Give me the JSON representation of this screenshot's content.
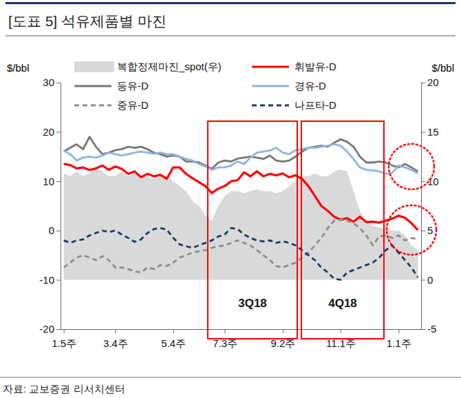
{
  "chart_data": {
    "type": "line",
    "title": "[도표 5] 석유제품별 마진",
    "source": "자료: 교보증권 리서치센터",
    "y_label": "$/bbl",
    "y2_label": "$/bbl",
    "categories": [
      "1.5주",
      null,
      null,
      null,
      null,
      null,
      null,
      null,
      "3.4주",
      null,
      null,
      null,
      null,
      null,
      null,
      null,
      null,
      "5.4주",
      null,
      null,
      null,
      null,
      null,
      null,
      null,
      "7.3주",
      null,
      null,
      null,
      null,
      null,
      null,
      null,
      null,
      "9.2주",
      null,
      null,
      null,
      null,
      null,
      null,
      null,
      null,
      "11.1주",
      null,
      null,
      null,
      null,
      null,
      null,
      null,
      null,
      "1.1주",
      null,
      null,
      null
    ],
    "ylim": [
      -20,
      30
    ],
    "yticks": [
      -20,
      -10,
      0,
      10,
      20,
      30
    ],
    "y2lim": [
      -5,
      20
    ],
    "y2ticks": [
      -5,
      0,
      5,
      10,
      15,
      20
    ],
    "grid": false,
    "annotations": [
      {
        "text": "3Q18"
      },
      {
        "text": "4Q18"
      }
    ],
    "series": [
      {
        "name": "복합정제마진_spot(우)",
        "type": "area",
        "axis": "y2",
        "color": "#d9d9d9",
        "values": [
          10.8,
          10.5,
          11.0,
          10.5,
          10.8,
          11.5,
          11.0,
          10.5,
          10.5,
          11.0,
          10.5,
          10.8,
          10.2,
          10.5,
          10.3,
          10.8,
          10.5,
          10.0,
          9.5,
          9.0,
          8.0,
          7.5,
          6.5,
          6.0,
          7.5,
          8.5,
          9.0,
          9.0,
          8.8,
          9.0,
          9.2,
          9.0,
          9.0,
          8.8,
          9.0,
          9.5,
          10.0,
          10.5,
          10.5,
          10.8,
          10.5,
          10.5,
          11.0,
          11.2,
          11.0,
          9.0,
          7.0,
          6.0,
          5.5,
          5.3,
          5.2,
          5.0,
          5.0,
          4.5,
          3.5,
          3.0
        ]
      },
      {
        "name": "휘발유-D",
        "color": "#ff0000",
        "line_style": "solid",
        "values": [
          13.5,
          13.3,
          12.6,
          12.8,
          12.3,
          12.6,
          13.2,
          12.3,
          13.0,
          12.5,
          11.5,
          12.0,
          10.8,
          11.5,
          11.0,
          11.3,
          10.5,
          12.8,
          12.8,
          11.5,
          10.6,
          9.8,
          9.0,
          7.6,
          8.5,
          9.0,
          10.0,
          10.2,
          11.8,
          11.0,
          12.0,
          11.0,
          11.5,
          11.2,
          11.6,
          10.8,
          11.2,
          10.5,
          9.0,
          7.0,
          5.0,
          4.0,
          2.8,
          2.2,
          2.5,
          1.8,
          2.8,
          1.7,
          1.8,
          1.6,
          2.0,
          2.4,
          3.0,
          2.6,
          1.5,
          0.1
        ]
      },
      {
        "name": "등유-D",
        "color": "#767676",
        "line_style": "solid",
        "values": [
          16.0,
          16.8,
          17.5,
          16.5,
          19.0,
          17.0,
          15.5,
          15.8,
          16.3,
          16.5,
          17.0,
          16.8,
          17.0,
          16.5,
          15.8,
          15.5,
          15.0,
          15.2,
          15.0,
          14.0,
          14.0,
          13.8,
          13.2,
          12.5,
          13.8,
          14.2,
          14.0,
          14.6,
          14.8,
          15.0,
          14.8,
          14.5,
          15.2,
          14.2,
          14.0,
          14.2,
          15.0,
          16.0,
          16.8,
          17.0,
          17.2,
          17.0,
          17.8,
          18.5,
          18.0,
          17.0,
          15.0,
          13.8,
          13.8,
          14.0,
          13.8,
          13.2,
          12.8,
          13.5,
          12.8,
          12.0
        ]
      },
      {
        "name": "경유-D",
        "color": "#8db4e2",
        "line_style": "solid",
        "values": [
          16.2,
          15.5,
          14.2,
          14.8,
          15.0,
          14.8,
          15.2,
          15.8,
          15.5,
          15.2,
          15.5,
          15.8,
          16.0,
          15.8,
          15.6,
          15.8,
          15.5,
          15.5,
          15.0,
          14.5,
          14.2,
          13.5,
          13.0,
          12.3,
          12.8,
          12.8,
          13.2,
          14.0,
          13.5,
          14.8,
          15.8,
          16.0,
          16.2,
          16.8,
          15.8,
          15.5,
          16.3,
          16.5,
          16.8,
          16.8,
          17.0,
          17.2,
          17.5,
          17.2,
          16.0,
          14.5,
          12.8,
          12.3,
          12.2,
          12.0,
          11.5,
          11.7,
          13.2,
          12.8,
          12.3,
          11.6
        ]
      },
      {
        "name": "중유-D",
        "color": "#8c8c8c",
        "line_style": "dashed",
        "values": [
          -7.5,
          -6.5,
          -5.5,
          -5.0,
          -5.5,
          -6.0,
          -5.2,
          -6.0,
          -7.5,
          -7.5,
          -7.8,
          -8.3,
          -8.5,
          -7.5,
          -7.8,
          -7.0,
          -7.2,
          -6.5,
          -5.5,
          -5.0,
          -4.5,
          -4.2,
          -4.0,
          -3.5,
          -3.2,
          -3.0,
          -2.5,
          -2.0,
          -2.5,
          -3.0,
          -4.0,
          -5.0,
          -6.0,
          -7.2,
          -7.5,
          -7.0,
          -6.5,
          -5.5,
          -4.5,
          -3.0,
          -1.5,
          0.5,
          2.0,
          2.2,
          2.0,
          1.5,
          0.5,
          -1.0,
          -3.0,
          -1.2,
          -1.0,
          -1.5,
          -1.0,
          -2.0,
          -1.5,
          -1.8
        ]
      },
      {
        "name": "나프타-D",
        "color": "#1f3864",
        "line_style": "dashed",
        "values": [
          -2.0,
          -2.5,
          -2.0,
          -1.8,
          -1.0,
          -0.5,
          0.0,
          -0.3,
          0.0,
          -0.8,
          -1.5,
          -2.3,
          -1.8,
          -0.5,
          0.3,
          0.5,
          0.2,
          -1.5,
          -2.8,
          -3.2,
          -3.5,
          -3.0,
          -2.5,
          -2.0,
          -1.2,
          -0.8,
          0.5,
          0.3,
          -0.8,
          -1.5,
          -2.0,
          -2.2,
          -2.0,
          -2.5,
          -2.2,
          -2.5,
          -3.0,
          -4.0,
          -5.0,
          -6.0,
          -7.5,
          -8.5,
          -9.8,
          -10.0,
          -8.5,
          -8.0,
          -7.5,
          -7.0,
          -6.5,
          -5.5,
          -4.0,
          -3.0,
          -4.5,
          -6.0,
          -7.5,
          -9.5
        ]
      }
    ]
  }
}
